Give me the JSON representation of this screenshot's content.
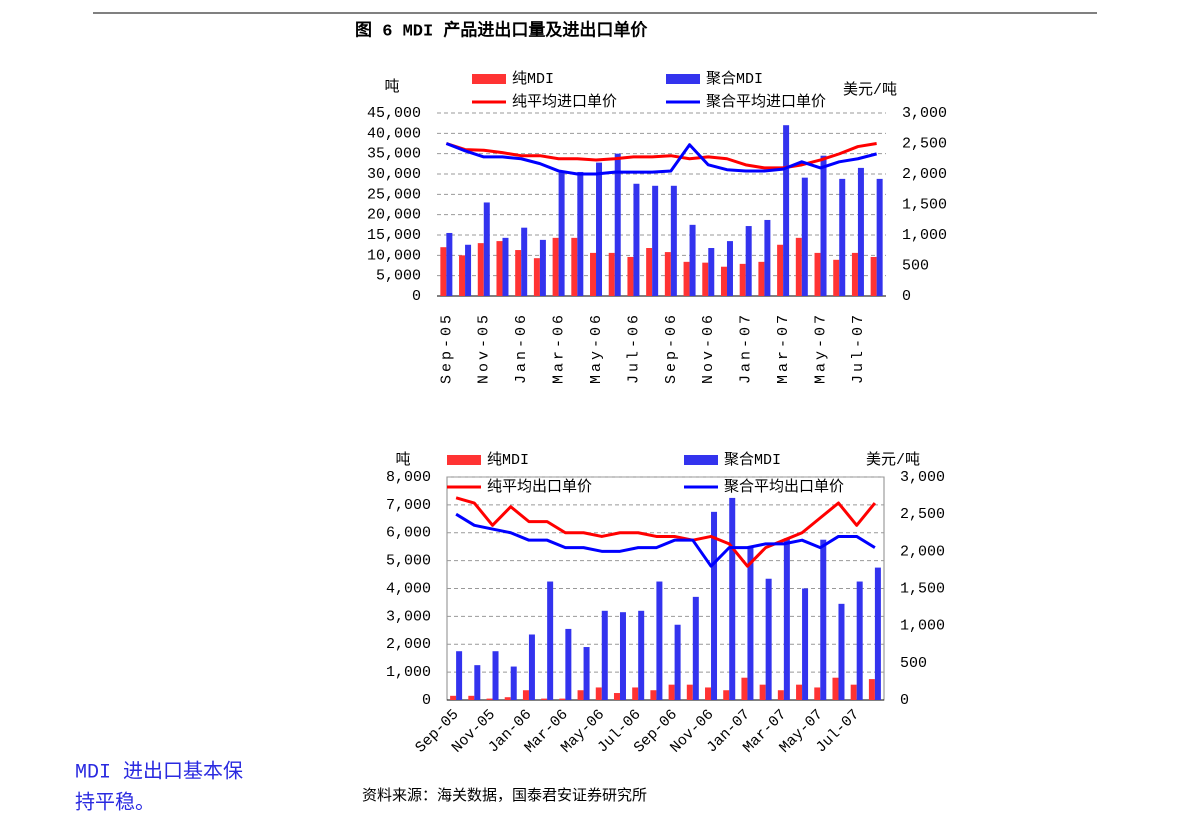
{
  "caption": "图 6  MDI 产品进出口量及进出口单价",
  "chart_data": [
    {
      "type": "combo",
      "y_label": "吨",
      "y2_label": "美元/吨",
      "categories": [
        "Sep-05",
        null,
        "Nov-05",
        null,
        "Jan-06",
        null,
        "Mar-06",
        null,
        "May-06",
        null,
        "Jul-06",
        null,
        "Sep-06",
        null,
        "Nov-06",
        null,
        "Jan-07",
        null,
        "Mar-07",
        null,
        "May-07",
        null,
        "Jul-07",
        null
      ],
      "ylim": [
        0,
        45000
      ],
      "yticks": [
        0,
        {
          "value": 5000,
          "label": "5,000"
        },
        {
          "value": 10000,
          "label": "10,000"
        },
        {
          "value": 15000,
          "label": "15,000"
        },
        {
          "value": 20000,
          "label": "20,000"
        },
        {
          "value": 25000,
          "label": "25,000"
        },
        {
          "value": 30000,
          "label": "30,000"
        },
        {
          "value": 35000,
          "label": "35,000"
        },
        {
          "value": 40000,
          "label": "40,000"
        },
        {
          "value": 45000,
          "label": "45,000"
        }
      ],
      "y2lim": [
        0,
        3000
      ],
      "y2ticks": [
        0,
        500,
        {
          "value": 1000,
          "label": "1,000"
        },
        {
          "value": 1500,
          "label": "1,500"
        },
        {
          "value": 2000,
          "label": "2,000"
        },
        {
          "value": 2500,
          "label": "2,500"
        },
        {
          "value": 3000,
          "label": "3,000"
        }
      ],
      "grid": true,
      "series": [
        {
          "name": "纯MDI",
          "kind": "bar",
          "color": "#ff3333",
          "values": [
            12000,
            10000,
            13000,
            13500,
            11300,
            9300,
            14300,
            14300,
            10600,
            10600,
            9600,
            11800,
            10800,
            8400,
            8200,
            7200,
            7900,
            8400,
            12600,
            14300,
            10600,
            8900,
            10600,
            9600
          ]
        },
        {
          "name": "聚合MDI",
          "kind": "bar",
          "color": "#3333ee",
          "values": [
            15500,
            12600,
            23000,
            14300,
            16800,
            13800,
            30500,
            30500,
            32800,
            35000,
            27600,
            27100,
            27100,
            17500,
            11800,
            13500,
            17200,
            18700,
            42000,
            29100,
            34500,
            28800,
            31500,
            28800
          ]
        },
        {
          "name": "纯平均进口单价",
          "kind": "line",
          "axis": "y2",
          "color": "#ff0000",
          "values": [
            2500,
            2400,
            2390,
            2350,
            2300,
            2300,
            2250,
            2250,
            2230,
            2250,
            2280,
            2280,
            2300,
            2250,
            2280,
            2250,
            2150,
            2100,
            2100,
            2150,
            2230,
            2330,
            2450,
            2500
          ]
        },
        {
          "name": "聚合平均进口单价",
          "kind": "line",
          "axis": "y2",
          "color": "#0000ff",
          "values": [
            2500,
            2380,
            2280,
            2280,
            2250,
            2170,
            2050,
            2000,
            2000,
            2030,
            2030,
            2030,
            2050,
            2480,
            2150,
            2070,
            2050,
            2050,
            2080,
            2200,
            2100,
            2200,
            2250,
            2330
          ]
        }
      ]
    },
    {
      "type": "combo",
      "y_label": "吨",
      "y2_label": "美元/吨",
      "categories": [
        "Sep-05",
        null,
        "Nov-05",
        null,
        "Jan-06",
        null,
        "Mar-06",
        null,
        "May-06",
        null,
        "Jul-06",
        null,
        "Sep-06",
        null,
        "Nov-06",
        null,
        "Jan-07",
        null,
        "Mar-07",
        null,
        "May-07",
        null,
        "Jul-07",
        null
      ],
      "ylim": [
        0,
        8000
      ],
      "yticks": [
        0,
        {
          "value": 1000,
          "label": "1,000"
        },
        {
          "value": 2000,
          "label": "2,000"
        },
        {
          "value": 3000,
          "label": "3,000"
        },
        {
          "value": 4000,
          "label": "4,000"
        },
        {
          "value": 5000,
          "label": "5,000"
        },
        {
          "value": 6000,
          "label": "6,000"
        },
        {
          "value": 7000,
          "label": "7,000"
        },
        {
          "value": 8000,
          "label": "8,000"
        }
      ],
      "y2lim": [
        0,
        3000
      ],
      "y2ticks": [
        0,
        500,
        {
          "value": 1000,
          "label": "1,000"
        },
        {
          "value": 1500,
          "label": "1,500"
        },
        {
          "value": 2000,
          "label": "2,000"
        },
        {
          "value": 2500,
          "label": "2,500"
        },
        {
          "value": 3000,
          "label": "3,000"
        }
      ],
      "grid": true,
      "series": [
        {
          "name": "纯MDI",
          "kind": "bar",
          "color": "#ff3333",
          "values": [
            150,
            150,
            50,
            100,
            350,
            50,
            50,
            350,
            450,
            250,
            450,
            350,
            550,
            550,
            450,
            350,
            800,
            550,
            350,
            550,
            450,
            800,
            550,
            750
          ]
        },
        {
          "name": "聚合MDI",
          "kind": "bar",
          "color": "#3333ee",
          "values": [
            1750,
            1250,
            1750,
            1200,
            2350,
            4250,
            2550,
            1900,
            3200,
            3150,
            3200,
            4250,
            2700,
            3700,
            6750,
            7250,
            5500,
            4350,
            5800,
            4000,
            5750,
            3450,
            4250,
            4750
          ]
        },
        {
          "name": "纯平均出口单价",
          "kind": "line",
          "axis": "y2",
          "color": "#ff0000",
          "values": [
            2720,
            2650,
            2350,
            2600,
            2400,
            2400,
            2250,
            2250,
            2200,
            2250,
            2250,
            2200,
            2200,
            2150,
            2200,
            2100,
            1800,
            2050,
            2150,
            2250,
            2450,
            2650,
            2350,
            2650
          ]
        },
        {
          "name": "聚合平均出口单价",
          "kind": "line",
          "axis": "y2",
          "color": "#0000ff",
          "values": [
            2500,
            2350,
            2300,
            2250,
            2150,
            2150,
            2050,
            2050,
            2000,
            2000,
            2050,
            2050,
            2150,
            2150,
            1800,
            2050,
            2050,
            2100,
            2100,
            2150,
            2050,
            2200,
            2200,
            2050
          ]
        }
      ]
    }
  ],
  "sidebar": [
    "MDI 进出口基本保",
    "持平稳。"
  ],
  "source": "资料来源：海关数据，国泰君安证券研究所"
}
